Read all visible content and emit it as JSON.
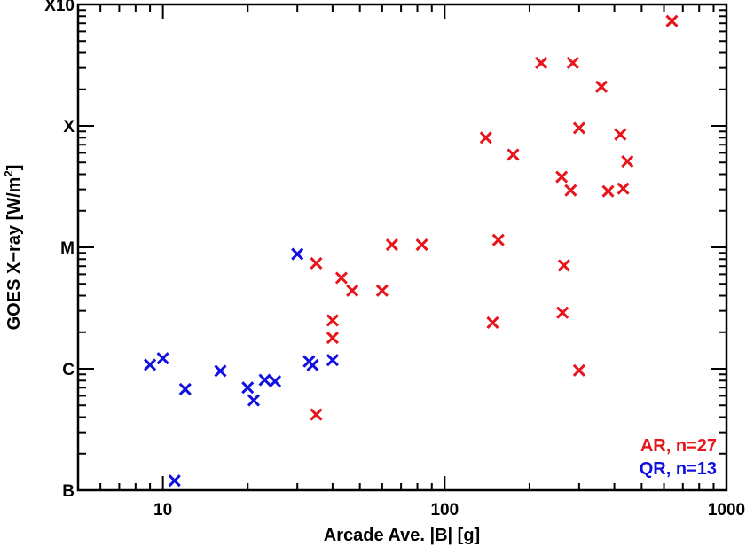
{
  "chart_data": {
    "type": "scatter",
    "xlabel": "Arcade Ave. |B| [g]",
    "ylabel_main": "GOES X−ray [W/m",
    "ylabel_sup": "2",
    "ylabel_tail": "]",
    "x_scale": "log",
    "y_scale": "log",
    "xlim": [
      5,
      1000
    ],
    "ylim_flux": [
      1e-07,
      0.001
    ],
    "x_ticks": [
      {
        "value": 10,
        "label": "10"
      },
      {
        "value": 100,
        "label": "100"
      },
      {
        "value": 1000,
        "label": "1000"
      }
    ],
    "y_ticks": [
      {
        "value": 1e-07,
        "label": "B"
      },
      {
        "value": 1e-06,
        "label": "C"
      },
      {
        "value": 1e-05,
        "label": "M"
      },
      {
        "value": 0.0001,
        "label": "X"
      },
      {
        "value": 0.001,
        "label": "X10"
      }
    ],
    "grid": false,
    "legend_position": "bottom-right",
    "marker": "x",
    "series": [
      {
        "name": "AR, n=27",
        "color": "#e8141b",
        "points": [
          [
            35,
            4.2e-07
          ],
          [
            40,
            1.8e-06
          ],
          [
            35,
            7.4e-06
          ],
          [
            40,
            2.5e-06
          ],
          [
            43,
            5.6e-06
          ],
          [
            47,
            4.4e-06
          ],
          [
            60,
            4.4e-06
          ],
          [
            65,
            1.05e-05
          ],
          [
            83,
            1.05e-05
          ],
          [
            140,
            8e-05
          ],
          [
            148,
            2.4e-06
          ],
          [
            155,
            1.15e-05
          ],
          [
            175,
            5.8e-05
          ],
          [
            220,
            0.00033
          ],
          [
            260,
            3.8e-05
          ],
          [
            262,
            2.9e-06
          ],
          [
            265,
            7.1e-06
          ],
          [
            280,
            2.95e-05
          ],
          [
            285,
            0.00033
          ],
          [
            300,
            9.6e-05
          ],
          [
            300,
            9.7e-07
          ],
          [
            360,
            0.00021
          ],
          [
            380,
            2.9e-05
          ],
          [
            420,
            8.5e-05
          ],
          [
            430,
            3.05e-05
          ],
          [
            445,
            5.1e-05
          ],
          [
            640,
            0.00073
          ]
        ]
      },
      {
        "name": "QR, n=13",
        "color": "#1010e0",
        "points": [
          [
            9,
            1.08e-06
          ],
          [
            10,
            1.22e-06
          ],
          [
            11,
            1.2e-07
          ],
          [
            12,
            6.8e-07
          ],
          [
            16,
            9.6e-07
          ],
          [
            20,
            7e-07
          ],
          [
            21,
            5.5e-07
          ],
          [
            23,
            8.1e-07
          ],
          [
            25,
            7.9e-07
          ],
          [
            30,
            8.8e-06
          ],
          [
            33,
            1.15e-06
          ],
          [
            34,
            1.07e-06
          ],
          [
            40,
            1.18e-06
          ]
        ]
      }
    ]
  }
}
